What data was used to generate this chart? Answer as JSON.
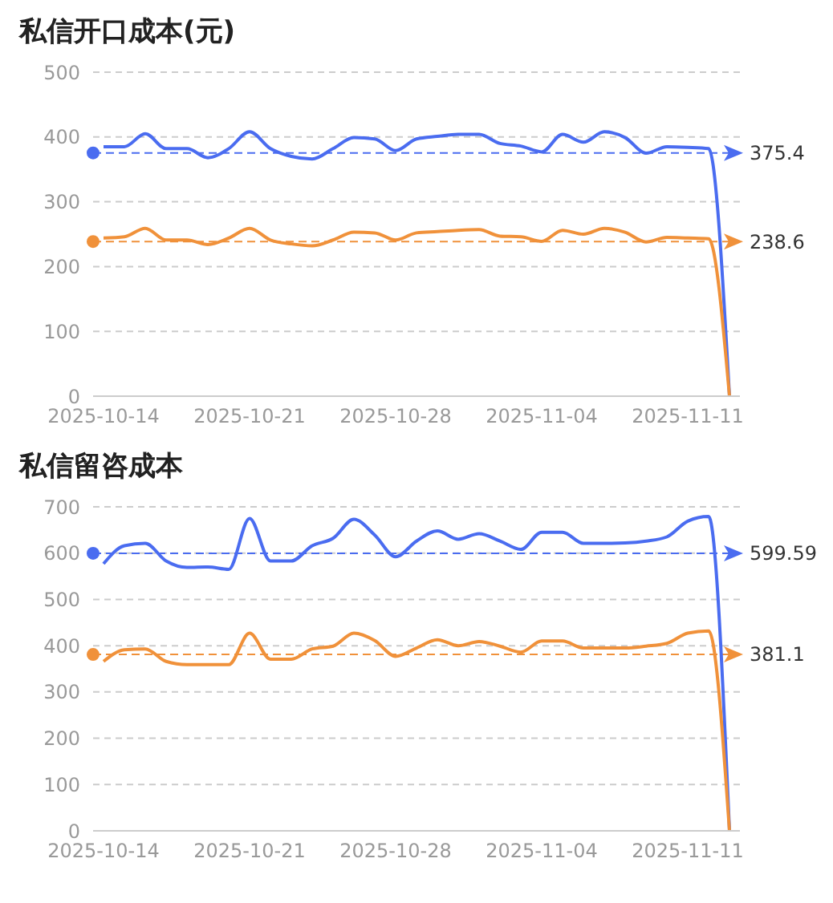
{
  "chart_data": [
    {
      "type": "line",
      "title": "私信开口成本(元)",
      "x": [
        "2025-10-14",
        "2025-10-15",
        "2025-10-16",
        "2025-10-17",
        "2025-10-18",
        "2025-10-19",
        "2025-10-20",
        "2025-10-21",
        "2025-10-22",
        "2025-10-23",
        "2025-10-24",
        "2025-10-25",
        "2025-10-26",
        "2025-10-27",
        "2025-10-28",
        "2025-10-29",
        "2025-10-30",
        "2025-10-31",
        "2025-11-01",
        "2025-11-02",
        "2025-11-03",
        "2025-11-04",
        "2025-11-05",
        "2025-11-06",
        "2025-11-07",
        "2025-11-08",
        "2025-11-09",
        "2025-11-10",
        "2025-11-11",
        "2025-11-12",
        "2025-11-13"
      ],
      "series": [
        {
          "color": "#4a6cf0",
          "values": [
            385,
            385,
            405,
            382,
            382,
            368,
            382,
            408,
            382,
            370,
            366,
            382,
            399,
            397,
            379,
            397,
            401,
            404,
            404,
            390,
            386,
            377,
            404,
            392,
            408,
            399,
            375,
            385,
            384,
            382,
            0
          ]
        },
        {
          "color": "#f0913a",
          "values": [
            244,
            246,
            259,
            241,
            241,
            234,
            244,
            259,
            241,
            235,
            232,
            241,
            253,
            252,
            241,
            252,
            254,
            256,
            257,
            247,
            246,
            239,
            256,
            250,
            259,
            253,
            238,
            245,
            244,
            243,
            0
          ]
        }
      ],
      "ref_lines": [
        {
          "axis": "y",
          "value": 375.4,
          "label": "375.4",
          "color": "#4a6cf0",
          "line_style": "dashed"
        },
        {
          "axis": "y",
          "value": 238.6,
          "label": "238.6",
          "color": "#f0913a",
          "line_style": "dashed"
        }
      ],
      "xlim": [
        "2025-10-13T12:00",
        "2025-11-13T12:00"
      ],
      "xticks": [
        "2025-10-14",
        "2025-10-21",
        "2025-10-28",
        "2025-11-04",
        "2025-11-11"
      ],
      "ylim": [
        0,
        500
      ],
      "yticks": [
        0,
        100,
        200,
        300,
        400,
        500
      ],
      "grid": "y",
      "marker": "none",
      "line_style": "solid"
    },
    {
      "type": "line",
      "title": "私信留咨成本",
      "x": [
        "2025-10-14",
        "2025-10-15",
        "2025-10-16",
        "2025-10-17",
        "2025-10-18",
        "2025-10-19",
        "2025-10-20",
        "2025-10-21",
        "2025-10-22",
        "2025-10-23",
        "2025-10-24",
        "2025-10-25",
        "2025-10-26",
        "2025-10-27",
        "2025-10-28",
        "2025-10-29",
        "2025-10-30",
        "2025-10-31",
        "2025-11-01",
        "2025-11-02",
        "2025-11-03",
        "2025-11-04",
        "2025-11-05",
        "2025-11-06",
        "2025-11-07",
        "2025-11-08",
        "2025-11-09",
        "2025-11-10",
        "2025-11-11",
        "2025-11-12",
        "2025-11-13"
      ],
      "series": [
        {
          "color": "#4a6cf0",
          "values": [
            577,
            616,
            621,
            583,
            569,
            570,
            565,
            675,
            583,
            583,
            616,
            632,
            673,
            639,
            592,
            626,
            648,
            630,
            642,
            626,
            608,
            645,
            645,
            621,
            621,
            622,
            626,
            635,
            669,
            679,
            0
          ]
        },
        {
          "color": "#f0913a",
          "values": [
            366,
            391,
            393,
            366,
            359,
            359,
            359,
            427,
            371,
            371,
            393,
            399,
            427,
            411,
            377,
            395,
            413,
            400,
            409,
            399,
            386,
            410,
            410,
            395,
            395,
            395,
            399,
            405,
            427,
            432,
            0
          ]
        }
      ],
      "ref_lines": [
        {
          "axis": "y",
          "value": 599.59,
          "label": "599.59",
          "color": "#4a6cf0",
          "line_style": "dashed"
        },
        {
          "axis": "y",
          "value": 381.1,
          "label": "381.1",
          "color": "#f0913a",
          "line_style": "dashed"
        }
      ],
      "xlim": [
        "2025-10-13T12:00",
        "2025-11-13T12:00"
      ],
      "xticks": [
        "2025-10-14",
        "2025-10-21",
        "2025-10-28",
        "2025-11-04",
        "2025-11-11"
      ],
      "ylim": [
        0,
        700
      ],
      "yticks": [
        0,
        100,
        200,
        300,
        400,
        500,
        600,
        700
      ],
      "grid": "y",
      "marker": "none",
      "line_style": "solid"
    }
  ]
}
